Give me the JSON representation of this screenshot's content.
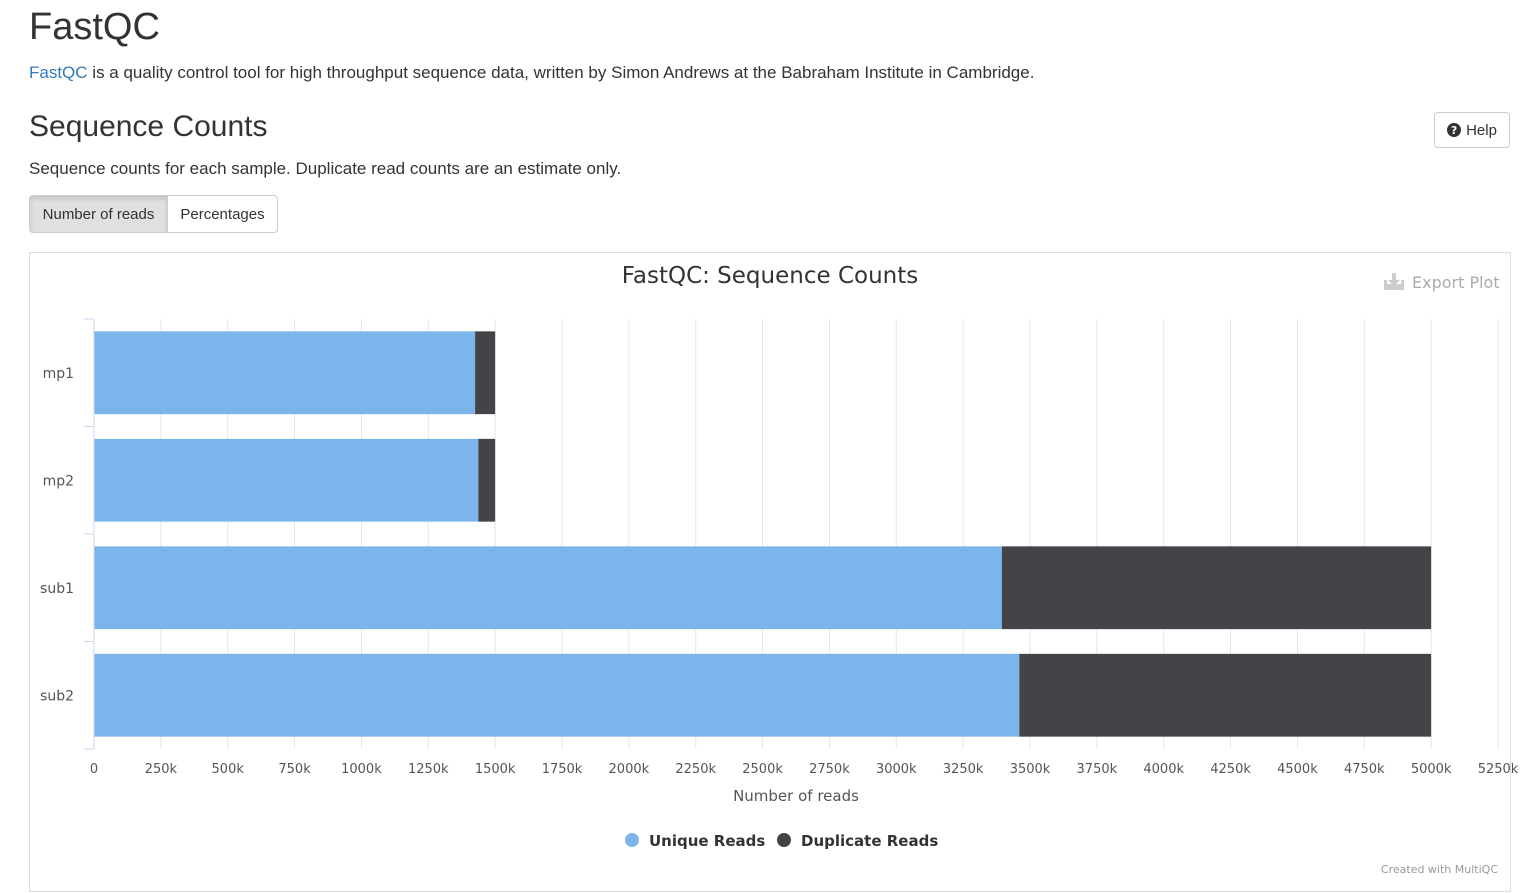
{
  "header": {
    "title": "FastQC",
    "intro_link": "FastQC",
    "intro_text": " is a quality control tool for high throughput sequence data, written by Simon Andrews at the Babraham Institute in Cambridge."
  },
  "section": {
    "title": "Sequence Counts",
    "help_label": "Help",
    "help_icon": "question-circle-icon",
    "description": "Sequence counts for each sample. Duplicate read counts are an estimate only.",
    "toggle": {
      "reads_label": "Number of reads",
      "percent_label": "Percentages",
      "active": "reads"
    }
  },
  "plot": {
    "export_label": "Export Plot",
    "export_icon": "download-icon",
    "credit": "Created with MultiQC"
  },
  "chart_data": {
    "type": "bar",
    "orientation": "horizontal",
    "stacked": true,
    "title": "FastQC: Sequence Counts",
    "xlabel": "Number of reads",
    "ylabel": "",
    "categories": [
      "mp1",
      "mp2",
      "sub1",
      "sub2"
    ],
    "series": [
      {
        "name": "Unique Reads",
        "color": "#7cb5ec",
        "values": [
          1425000,
          1437000,
          3395000,
          3460000
        ]
      },
      {
        "name": "Duplicate Reads",
        "color": "#434348",
        "values": [
          75000,
          63000,
          1605000,
          1540000
        ]
      }
    ],
    "xlim": [
      0,
      5250000
    ],
    "xticks": [
      "0",
      "250k",
      "500k",
      "750k",
      "1000k",
      "1250k",
      "1500k",
      "1750k",
      "2000k",
      "2250k",
      "2500k",
      "2750k",
      "3000k",
      "3250k",
      "3500k",
      "3750k",
      "4000k",
      "4250k",
      "4500k",
      "4750k",
      "5000k",
      "5250k"
    ],
    "grid": true,
    "legend_position": "bottom-center"
  }
}
